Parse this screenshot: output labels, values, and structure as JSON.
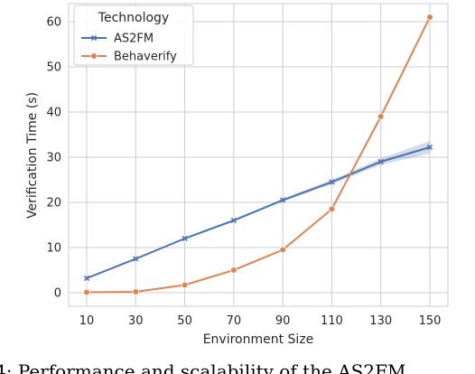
{
  "chart_data": {
    "type": "line",
    "xlabel": "Environment Size",
    "ylabel": "Verification Time (s)",
    "categories": [
      "10",
      "30",
      "50",
      "70",
      "90",
      "110",
      "130",
      "150"
    ],
    "x": [
      10,
      30,
      50,
      70,
      90,
      110,
      130,
      150
    ],
    "y_ticks": [
      0,
      10,
      20,
      30,
      40,
      50,
      60
    ],
    "ylim": [
      -3,
      64
    ],
    "grid": true,
    "legend": {
      "title": "Technology",
      "placement": "top-left"
    },
    "series": [
      {
        "name": "AS2FM",
        "color": "#4c72b0",
        "marker": "x",
        "values": [
          3.2,
          7.5,
          12.0,
          16.0,
          20.5,
          24.5,
          29.0,
          32.2
        ],
        "ci_low": [
          3.0,
          7.3,
          11.8,
          15.7,
          20.2,
          24.0,
          28.3,
          30.8
        ],
        "ci_high": [
          3.4,
          7.7,
          12.2,
          16.3,
          20.8,
          25.0,
          29.7,
          33.6
        ]
      },
      {
        "name": "Behaverify",
        "color": "#dd8452",
        "marker": "circle",
        "values": [
          0.1,
          0.2,
          1.7,
          5.0,
          9.5,
          18.5,
          39.0,
          61.0
        ]
      }
    ]
  },
  "caption": {
    "text": "4: Performance and scalability of the AS2FM"
  }
}
